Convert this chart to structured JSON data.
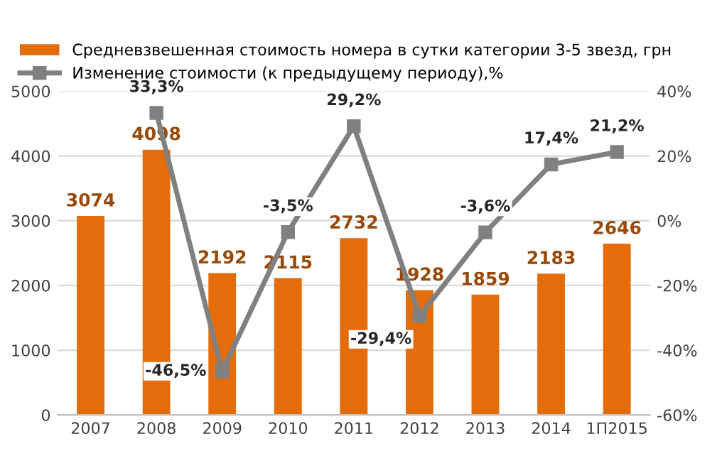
{
  "chart_data": {
    "type": "bar",
    "legend": "top",
    "grid": "y",
    "data_labels": true,
    "categories": [
      "2007",
      "2008",
      "2009",
      "2010",
      "2011",
      "2012",
      "2013",
      "2014",
      "1П2015"
    ],
    "ylim": [
      0,
      5000
    ],
    "yticks": [
      0,
      1000,
      2000,
      3000,
      4000,
      5000
    ],
    "y2lim": [
      -60,
      40
    ],
    "y2ticks": [
      {
        "value": -60,
        "label": "-60%"
      },
      {
        "value": -40,
        "label": "-40%"
      },
      {
        "value": -20,
        "label": "-20%"
      },
      {
        "value": 0,
        "label": "0%"
      },
      {
        "value": 20,
        "label": "20%"
      },
      {
        "value": 40,
        "label": "40%"
      }
    ],
    "series": [
      {
        "name": "Средневзвешенная стоимость номера в сутки категории 3-5 звезд, грн",
        "color": "#e46c0a",
        "values": [
          3074,
          4098,
          2192,
          2115,
          2732,
          1928,
          1859,
          2183,
          2646
        ]
      },
      {
        "name": "Изменение стоимости (к предыдущему периоду),%",
        "type": "line",
        "axis": "y2",
        "color": "#808080",
        "marker": "square",
        "line_style": "solid",
        "values": [
          null,
          33.3,
          -46.5,
          -3.5,
          29.2,
          -29.4,
          -3.6,
          17.4,
          21.2
        ],
        "value_labels": [
          null,
          "33,3%",
          "-46,5%",
          "-3,5%",
          "29,2%",
          "-29,4%",
          "-3,6%",
          "17,4%",
          "21,2%"
        ]
      }
    ]
  }
}
